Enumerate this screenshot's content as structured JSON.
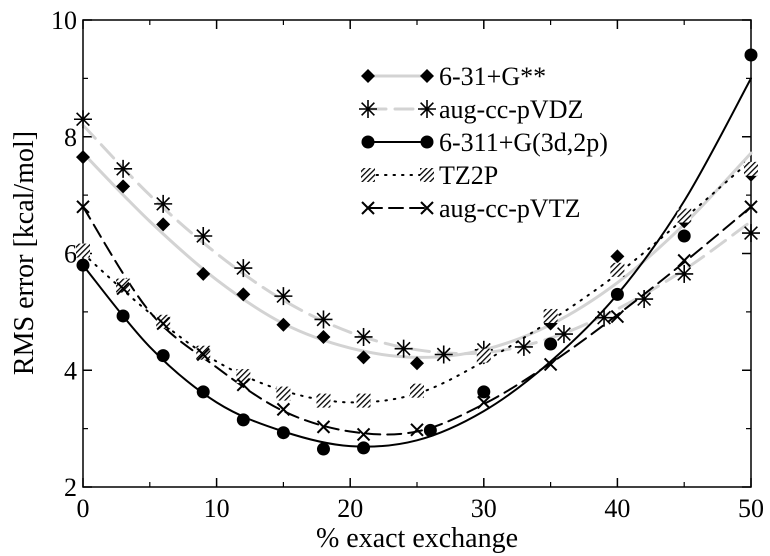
{
  "chart_data": {
    "type": "line",
    "title": "",
    "xlabel": "% exact exchange",
    "ylabel": "RMS error [kcal/mol]",
    "xlim": [
      0,
      50
    ],
    "ylim": [
      2,
      10
    ],
    "xticks": [
      0,
      10,
      20,
      30,
      40,
      50
    ],
    "yticks": [
      2,
      4,
      6,
      8,
      10
    ],
    "grid": false,
    "legend_position": "top-right",
    "series": [
      {
        "name": "6-31+G**",
        "marker": "diamond",
        "line_style": "solid",
        "line_color": "#d3d3d3",
        "marker_color": "#000000",
        "points": [
          [
            0,
            7.65
          ],
          [
            3,
            7.15
          ],
          [
            6,
            6.5
          ],
          [
            9,
            5.65
          ],
          [
            12,
            5.3
          ],
          [
            15,
            4.78
          ],
          [
            18,
            4.57
          ],
          [
            21,
            4.22
          ],
          [
            25,
            4.12
          ],
          [
            30,
            4.22
          ],
          [
            35,
            4.8
          ],
          [
            40,
            5.95
          ],
          [
            45,
            6.55
          ],
          [
            50,
            7.35
          ]
        ],
        "curve": [
          [
            0,
            7.72
          ],
          [
            5,
            6.55
          ],
          [
            10,
            5.55
          ],
          [
            15,
            4.8
          ],
          [
            20,
            4.38
          ],
          [
            25,
            4.22
          ],
          [
            30,
            4.35
          ],
          [
            35,
            4.78
          ],
          [
            40,
            5.5
          ],
          [
            45,
            6.5
          ],
          [
            50,
            7.72
          ]
        ]
      },
      {
        "name": "aug-cc-pVDZ",
        "marker": "asterisk",
        "line_style": "dashed",
        "line_color": "#d3d3d3",
        "marker_color": "#000000",
        "points": [
          [
            0,
            8.3
          ],
          [
            3,
            7.45
          ],
          [
            6,
            6.85
          ],
          [
            9,
            6.3
          ],
          [
            12,
            5.75
          ],
          [
            15,
            5.27
          ],
          [
            18,
            4.87
          ],
          [
            21,
            4.57
          ],
          [
            24,
            4.37
          ],
          [
            27,
            4.27
          ],
          [
            30,
            4.35
          ],
          [
            33,
            4.4
          ],
          [
            36,
            4.62
          ],
          [
            39,
            4.9
          ],
          [
            42,
            5.22
          ],
          [
            45,
            5.65
          ],
          [
            50,
            6.35
          ]
        ],
        "curve": [
          [
            0,
            8.2
          ],
          [
            5,
            7.0
          ],
          [
            10,
            6.0
          ],
          [
            15,
            5.2
          ],
          [
            20,
            4.65
          ],
          [
            25,
            4.35
          ],
          [
            30,
            4.3
          ],
          [
            35,
            4.55
          ],
          [
            40,
            5.05
          ],
          [
            45,
            5.72
          ],
          [
            50,
            6.55
          ]
        ]
      },
      {
        "name": "6-311+G(3d,2p)",
        "marker": "circle",
        "line_style": "solid",
        "line_color": "#000000",
        "marker_color": "#000000",
        "points": [
          [
            0,
            5.8
          ],
          [
            3,
            4.93
          ],
          [
            6,
            4.25
          ],
          [
            9,
            3.63
          ],
          [
            12,
            3.15
          ],
          [
            15,
            2.93
          ],
          [
            18,
            2.65
          ],
          [
            21,
            2.67
          ],
          [
            26,
            2.97
          ],
          [
            30,
            3.63
          ],
          [
            35,
            4.45
          ],
          [
            40,
            5.3
          ],
          [
            45,
            6.3
          ],
          [
            50,
            9.4
          ]
        ],
        "curve": [
          [
            0,
            5.8
          ],
          [
            5,
            4.4
          ],
          [
            10,
            3.45
          ],
          [
            15,
            2.95
          ],
          [
            20,
            2.7
          ],
          [
            25,
            2.8
          ],
          [
            30,
            3.3
          ],
          [
            35,
            4.15
          ],
          [
            40,
            5.3
          ],
          [
            45,
            6.9
          ],
          [
            50,
            9.0
          ]
        ]
      },
      {
        "name": "TZ2P",
        "marker": "hatched-square",
        "line_style": "dotted",
        "line_color": "#000000",
        "marker_color": "#000000",
        "points": [
          [
            0,
            6.05
          ],
          [
            3,
            5.45
          ],
          [
            6,
            4.83
          ],
          [
            9,
            4.3
          ],
          [
            12,
            3.9
          ],
          [
            15,
            3.6
          ],
          [
            18,
            3.48
          ],
          [
            21,
            3.48
          ],
          [
            25,
            3.65
          ],
          [
            30,
            4.25
          ],
          [
            35,
            4.93
          ],
          [
            40,
            5.72
          ],
          [
            45,
            6.65
          ],
          [
            50,
            7.45
          ]
        ],
        "curve": [
          [
            0,
            6.0
          ],
          [
            5,
            4.98
          ],
          [
            10,
            4.15
          ],
          [
            15,
            3.65
          ],
          [
            20,
            3.45
          ],
          [
            25,
            3.6
          ],
          [
            30,
            4.15
          ],
          [
            35,
            4.85
          ],
          [
            40,
            5.65
          ],
          [
            45,
            6.6
          ],
          [
            50,
            7.6
          ]
        ]
      },
      {
        "name": "aug-cc-pVTZ",
        "marker": "cross",
        "line_style": "dashed",
        "line_color": "#000000",
        "marker_color": "#000000",
        "points": [
          [
            0,
            6.8
          ],
          [
            3,
            5.4
          ],
          [
            6,
            4.8
          ],
          [
            9,
            4.27
          ],
          [
            12,
            3.75
          ],
          [
            15,
            3.33
          ],
          [
            18,
            3.03
          ],
          [
            21,
            2.9
          ],
          [
            25,
            2.98
          ],
          [
            30,
            3.45
          ],
          [
            35,
            4.1
          ],
          [
            40,
            4.92
          ],
          [
            45,
            5.88
          ],
          [
            50,
            6.8
          ]
        ],
        "curve": [
          [
            0,
            6.8
          ],
          [
            5,
            5.0
          ],
          [
            10,
            4.05
          ],
          [
            15,
            3.3
          ],
          [
            20,
            2.95
          ],
          [
            25,
            2.95
          ],
          [
            30,
            3.42
          ],
          [
            35,
            4.12
          ],
          [
            40,
            4.95
          ],
          [
            45,
            5.85
          ],
          [
            50,
            6.8
          ]
        ]
      }
    ]
  }
}
